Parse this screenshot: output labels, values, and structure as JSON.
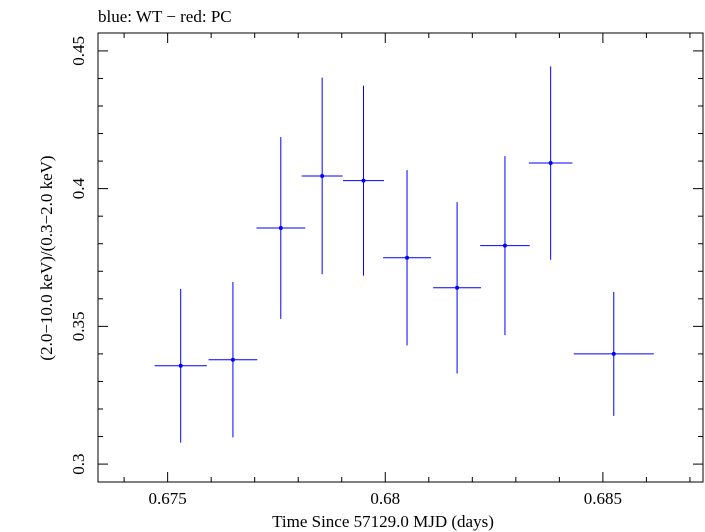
{
  "chart_data": {
    "type": "scatter",
    "title": "blue: WT − red: PC",
    "xlabel": "Time Since 57129.0 MJD (days)",
    "ylabel": "(2.0−10.0 keV)/(0.3−2.0 keV)",
    "xlim": [
      0.6734,
      0.6873
    ],
    "ylim": [
      0.2935,
      0.4565
    ],
    "x_ticks": [
      0.675,
      0.68,
      0.685
    ],
    "x_tick_labels": [
      "0.675",
      "0.68",
      "0.685"
    ],
    "y_ticks": [
      0.3,
      0.35,
      0.4,
      0.45
    ],
    "y_tick_labels": [
      "0.3",
      "0.35",
      "0.4",
      "0.45"
    ],
    "series": [
      {
        "name": "WT",
        "color": "#0000ff",
        "points": [
          {
            "x": 0.6753,
            "xerr": 0.0006,
            "y": 0.3357,
            "yerr_low": 0.0279,
            "yerr_high": 0.0279
          },
          {
            "x": 0.6765,
            "xerr": 0.00056,
            "y": 0.3379,
            "yerr_low": 0.0282,
            "yerr_high": 0.0282
          },
          {
            "x": 0.6776,
            "xerr": 0.00056,
            "y": 0.3857,
            "yerr_low": 0.033,
            "yerr_high": 0.033
          },
          {
            "x": 0.67855,
            "xerr": 0.00047,
            "y": 0.4046,
            "yerr_low": 0.0357,
            "yerr_high": 0.0357
          },
          {
            "x": 0.6795,
            "xerr": 0.00047,
            "y": 0.4029,
            "yerr_low": 0.0345,
            "yerr_high": 0.0345
          },
          {
            "x": 0.6805,
            "xerr": 0.00055,
            "y": 0.3749,
            "yerr_low": 0.0318,
            "yerr_high": 0.0318
          },
          {
            "x": 0.68165,
            "xerr": 0.00055,
            "y": 0.364,
            "yerr_low": 0.0311,
            "yerr_high": 0.0311
          },
          {
            "x": 0.68275,
            "xerr": 0.00057,
            "y": 0.3793,
            "yerr_low": 0.0325,
            "yerr_high": 0.0325
          },
          {
            "x": 0.6838,
            "xerr": 0.0005,
            "y": 0.4093,
            "yerr_low": 0.0351,
            "yerr_high": 0.0351
          },
          {
            "x": 0.68525,
            "xerr": 0.00092,
            "y": 0.34,
            "yerr_low": 0.0225,
            "yerr_high": 0.0225
          }
        ]
      }
    ]
  }
}
